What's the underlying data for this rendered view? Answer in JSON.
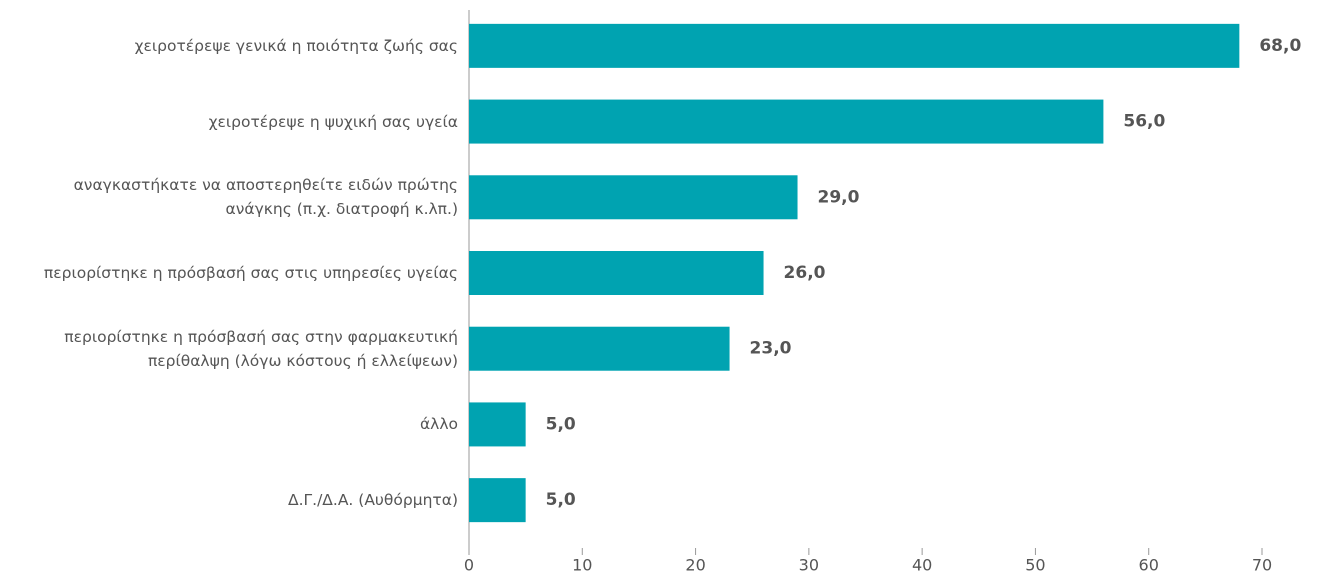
{
  "chart_data": {
    "type": "bar",
    "orientation": "horizontal",
    "categories": [
      "χειροτέρεψε γενικά η ποιότητα ζωής σας",
      "χειροτέρεψε η ψυχική σας υγεία",
      "αναγκαστήκατε να αποστερηθείτε ειδών πρώτης ανάγκης (π.χ. διατροφή κ.λπ.)",
      "περιορίστηκε η πρόσβασή σας στις υπηρεσίες υγείας",
      "περιορίστηκε η πρόσβασή σας στην φαρμακευτική περίθαλψη (λόγω κόστους ή ελλείψεων)",
      "άλλο",
      "Δ.Γ./Δ.Α. (Αυθόρμητα)"
    ],
    "values": [
      68,
      56,
      29,
      26,
      23,
      5,
      5
    ],
    "value_labels": [
      "68,0",
      "56,0",
      "29,0",
      "26,0",
      "23,0",
      "5,0",
      "5,0"
    ],
    "color": "#00a3b1",
    "xlim": [
      0,
      70
    ],
    "xticks": [
      0,
      10,
      20,
      30,
      40,
      50,
      60,
      70
    ],
    "grid": false
  }
}
